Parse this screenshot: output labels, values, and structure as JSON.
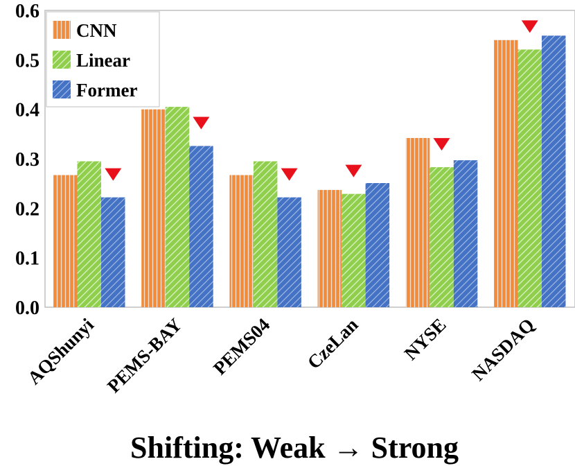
{
  "chart_data": {
    "type": "bar",
    "title": "",
    "xlabel": "Shifting:  Weak → Strong",
    "ylabel": "",
    "ylim": [
      0.0,
      0.6
    ],
    "yticks": [
      "0.0",
      "0.1",
      "0.2",
      "0.3",
      "0.4",
      "0.5",
      "0.6"
    ],
    "grid": false,
    "legend_position": "top-left",
    "categories": [
      "AQShunyi",
      "PEMS-BAY",
      "PEMS04",
      "CzeLan",
      "NYSE",
      "NASDAQ"
    ],
    "series": [
      {
        "name": "CNN",
        "color": "#F08C3C",
        "pattern": "vertical-stripes",
        "values": [
          0.267,
          0.4,
          0.267,
          0.237,
          0.342,
          0.54
        ]
      },
      {
        "name": "Linear",
        "color": "#8FCF4C",
        "pattern": "diagonal-stripes",
        "values": [
          0.295,
          0.405,
          0.295,
          0.229,
          0.283,
          0.521
        ]
      },
      {
        "name": "Former",
        "color": "#4472C4",
        "pattern": "diagonal-stripes",
        "values": [
          0.222,
          0.326,
          0.222,
          0.251,
          0.297,
          0.549
        ]
      }
    ],
    "markers": {
      "shape": "down-triangle",
      "color": "#E8101A",
      "series_per_category": [
        "Former",
        "Former",
        "Former",
        "Linear",
        "Linear",
        "Linear"
      ]
    }
  }
}
